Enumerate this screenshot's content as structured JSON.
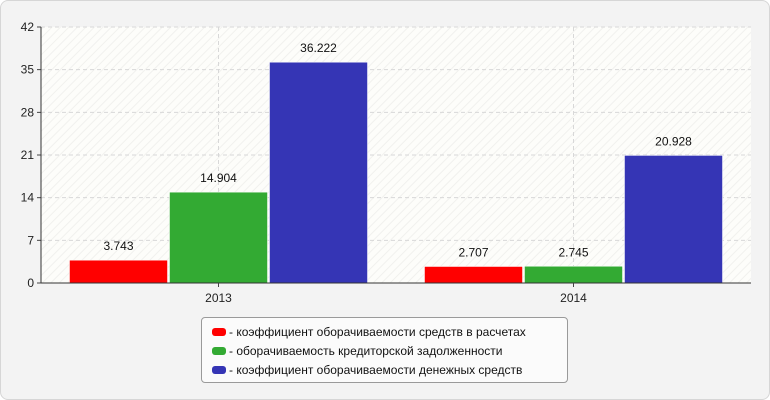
{
  "chart_data": {
    "type": "bar",
    "categories": [
      "2013",
      "2014"
    ],
    "series": [
      {
        "name": "коэффициент оборачиваемости средств в расчетах",
        "color": "#ff0000",
        "values": [
          3.743,
          2.707
        ]
      },
      {
        "name": "оборачиваемость кредиторской задолженности",
        "color": "#33aa33",
        "values": [
          14.904,
          2.745
        ]
      },
      {
        "name": "коэффициент оборачиваемости денежных средств",
        "color": "#3535b5",
        "values": [
          36.222,
          20.928
        ]
      }
    ],
    "yticks": [
      "0",
      "7",
      "14",
      "21",
      "28",
      "35",
      "42"
    ],
    "ylim": [
      0,
      42
    ],
    "grid": true,
    "legend_position": "bottom-center",
    "legend_prefix": "- "
  }
}
